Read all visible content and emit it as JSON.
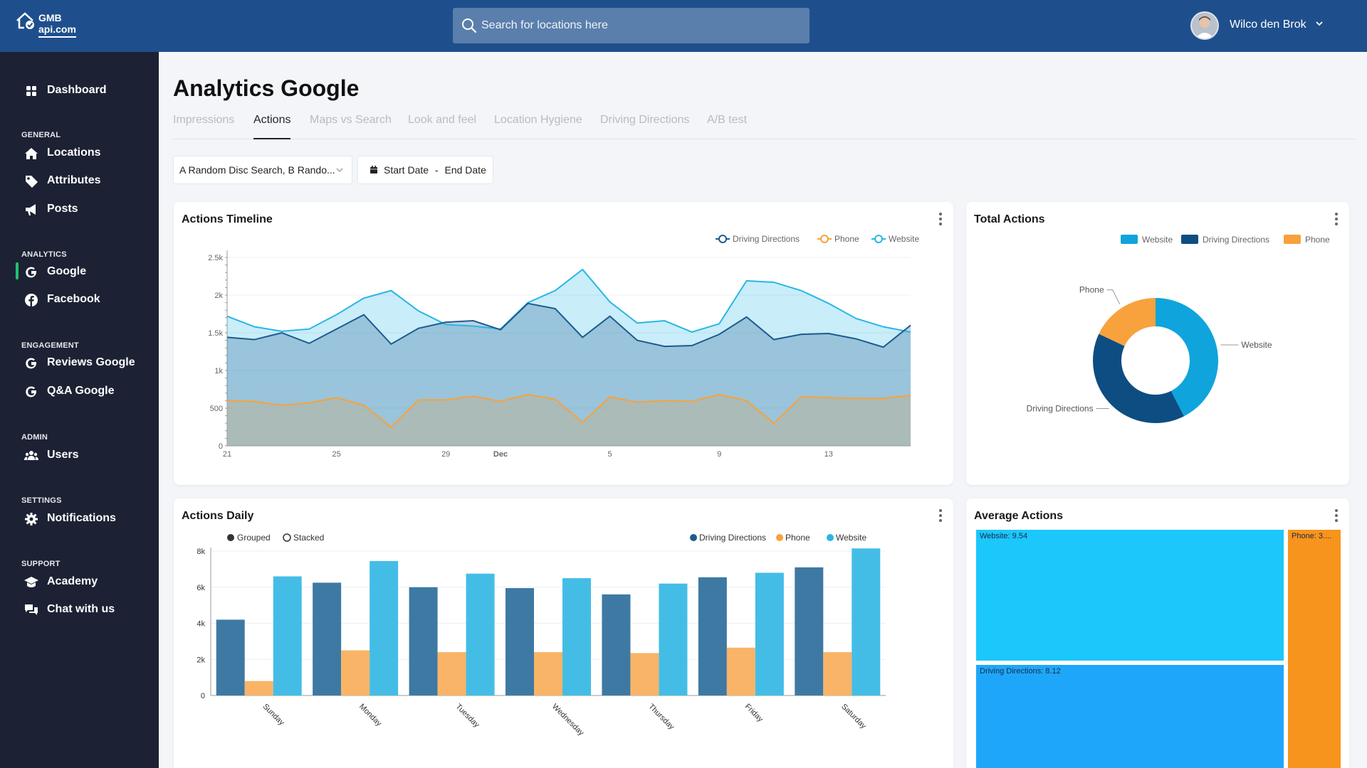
{
  "brand": {
    "line1": "GMB",
    "line2": "api.com"
  },
  "search": {
    "placeholder": "Search for locations here"
  },
  "user": {
    "name": "Wilco den Brok"
  },
  "sidebar": {
    "dashboard": "Dashboard",
    "sections": {
      "general": "GENERAL",
      "analytics": "ANALYTICS",
      "engagement": "ENGAGEMENT",
      "admin": "ADMIN",
      "settings": "SETTINGS",
      "support": "SUPPORT"
    },
    "items": {
      "locations": "Locations",
      "attributes": "Attributes",
      "posts": "Posts",
      "google": "Google",
      "facebook": "Facebook",
      "reviews_google": "Reviews Google",
      "qa_google": "Q&A Google",
      "users": "Users",
      "notifications": "Notifications",
      "academy": "Academy",
      "chat": "Chat with us"
    }
  },
  "page": {
    "title": "Analytics Google",
    "tabs": [
      "Impressions",
      "Actions",
      "Maps vs Search",
      "Look and feel",
      "Location Hygiene",
      "Driving Directions",
      "A/B test"
    ],
    "active_tab": "Actions"
  },
  "filters": {
    "locations": "A Random Disc Search, B Rando...",
    "start_date": "Start Date",
    "separator": "-",
    "end_date": "End Date"
  },
  "colors": {
    "driving": "#1d5b8e",
    "phone": "#f7a23c",
    "website": "#27b6e6",
    "treemap_website": "#1bc7fb",
    "treemap_driving": "#1ea7fa",
    "treemap_phone": "#f7941d"
  },
  "cards": {
    "timeline": {
      "title": "Actions Timeline",
      "menu_icon": "kebab-icon"
    },
    "total": {
      "title": "Total Actions",
      "menu_icon": "kebab-icon"
    },
    "daily": {
      "title": "Actions Daily",
      "menu_icon": "kebab-icon",
      "mode_grouped": "Grouped",
      "mode_stacked": "Stacked"
    },
    "average": {
      "title": "Average Actions",
      "menu_icon": "kebab-icon"
    }
  },
  "chart_data": [
    {
      "id": "actions-timeline",
      "type": "area",
      "title": "Actions Timeline",
      "x": [
        "21",
        "22",
        "23",
        "24",
        "25",
        "26",
        "27",
        "28",
        "29",
        "30",
        "Dec",
        "2",
        "3",
        "4",
        "5",
        "6",
        "7",
        "8",
        "9",
        "10",
        "11",
        "12",
        "13",
        "14",
        "15",
        "16"
      ],
      "x_tick_labels": [
        "21",
        "25",
        "29",
        "Dec",
        "5",
        "9",
        "13"
      ],
      "y_ticks": [
        "0",
        "500",
        "1k",
        "1.5k",
        "2k",
        "2.5k"
      ],
      "ylim": [
        0,
        2500
      ],
      "legend": [
        "Driving Directions",
        "Phone",
        "Website"
      ],
      "legend_position": "top-right",
      "series": [
        {
          "name": "Driving Directions",
          "values": [
            1440,
            1410,
            1500,
            1360,
            1550,
            1740,
            1350,
            1560,
            1640,
            1660,
            1540,
            1890,
            1820,
            1440,
            1720,
            1400,
            1320,
            1330,
            1480,
            1710,
            1410,
            1480,
            1490,
            1420,
            1310,
            1600
          ]
        },
        {
          "name": "Phone",
          "values": [
            600,
            590,
            540,
            570,
            640,
            540,
            250,
            610,
            610,
            660,
            590,
            680,
            620,
            310,
            650,
            580,
            600,
            590,
            680,
            600,
            300,
            650,
            640,
            630,
            630,
            670
          ]
        },
        {
          "name": "Website",
          "values": [
            1720,
            1580,
            1520,
            1550,
            1740,
            1960,
            2060,
            1790,
            1610,
            1590,
            1550,
            1900,
            2060,
            2340,
            1910,
            1630,
            1660,
            1510,
            1620,
            2190,
            2170,
            2060,
            1890,
            1690,
            1580,
            1510
          ]
        }
      ]
    },
    {
      "id": "total-actions",
      "type": "pie",
      "title": "Total Actions",
      "legend": [
        "Website",
        "Driving Directions",
        "Phone"
      ],
      "legend_position": "top-right",
      "categories": [
        "Website",
        "Driving Directions",
        "Phone"
      ],
      "values": [
        42.5,
        39.5,
        18
      ]
    },
    {
      "id": "actions-daily",
      "type": "bar",
      "title": "Actions Daily",
      "categories": [
        "Sunday",
        "Monday",
        "Tuesday",
        "Wednesday",
        "Thursday",
        "Friday",
        "Saturday"
      ],
      "y_ticks": [
        "0",
        "2k",
        "4k",
        "6k",
        "8k"
      ],
      "ylim": [
        0,
        8000
      ],
      "legend": [
        "Driving Directions",
        "Phone",
        "Website"
      ],
      "legend_position": "top-right",
      "series": [
        {
          "name": "Driving Directions",
          "values": [
            4200,
            6250,
            6000,
            5950,
            5600,
            6550,
            7100
          ]
        },
        {
          "name": "Phone",
          "values": [
            800,
            2500,
            2400,
            2400,
            2350,
            2650,
            2400
          ]
        },
        {
          "name": "Website",
          "values": [
            6600,
            7450,
            6750,
            6500,
            6200,
            6800,
            8150
          ]
        }
      ]
    },
    {
      "id": "average-actions",
      "type": "treemap",
      "title": "Average Actions",
      "labels": [
        "Website: 9.54",
        "Driving Directions: 8.12",
        "Phone: 3...."
      ],
      "values": [
        9.54,
        8.12,
        3.0
      ]
    }
  ]
}
